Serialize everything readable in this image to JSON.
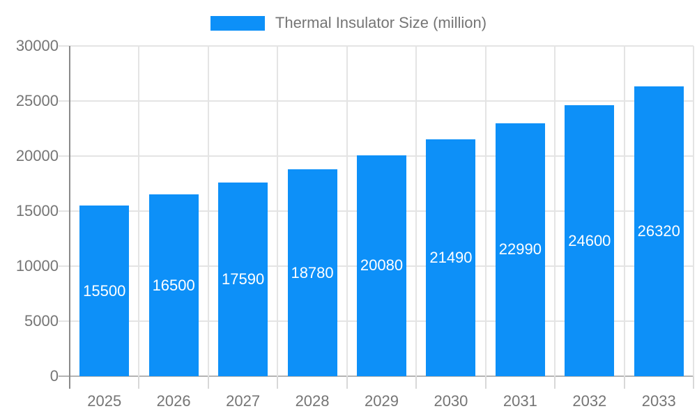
{
  "chart_data": {
    "type": "bar",
    "title": "",
    "legend_position": "top",
    "legend_entries": [
      "Thermal Insulator Size (million)"
    ],
    "categories": [
      "2025",
      "2026",
      "2027",
      "2028",
      "2029",
      "2030",
      "2031",
      "2032",
      "2033"
    ],
    "series": [
      {
        "name": "Thermal Insulator Size (million)",
        "values": [
          15500,
          16500,
          17590,
          18780,
          20080,
          21490,
          22990,
          24600,
          26320
        ]
      }
    ],
    "xlabel": "",
    "ylabel": "",
    "ylim": [
      0,
      30000
    ],
    "yticks": [
      0,
      5000,
      10000,
      15000,
      20000,
      25000,
      30000
    ],
    "grid": true,
    "value_labels": "inside-center",
    "colors": {
      "bar": "#0d90f8",
      "bar_label_text": "#ffffff",
      "axis_text": "#757575",
      "grid_line": "#e4e4e4",
      "zero_line": "#b3b3b3",
      "axis_line": "#8a8a8a",
      "tick_line": "#d8d8d8",
      "background": "#ffffff"
    }
  }
}
